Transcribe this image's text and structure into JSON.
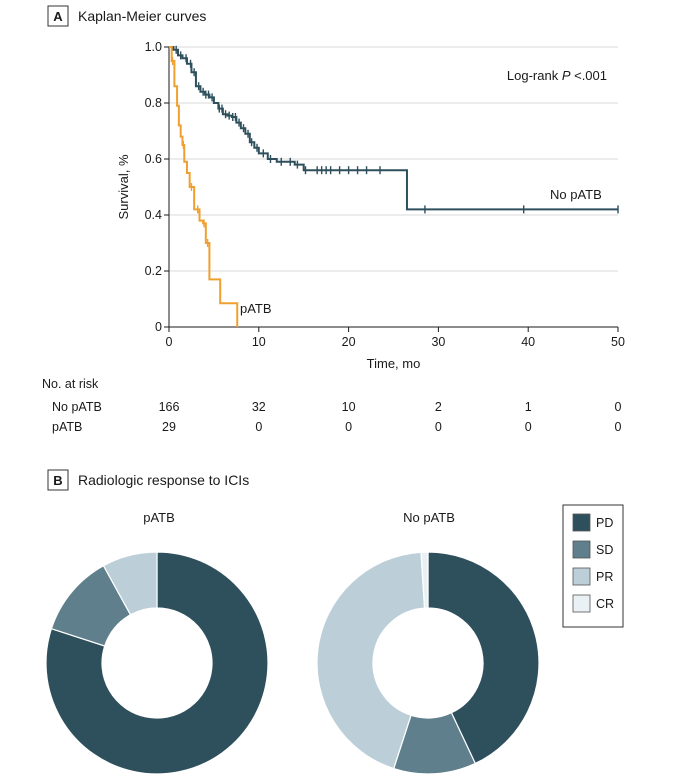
{
  "panel_a": {
    "letter": "A",
    "title": "Kaplan-Meier curves",
    "log_rank_prefix": "Log-rank ",
    "log_rank_p": "P",
    "log_rank_suffix": " <.001",
    "risk_header": "No. at risk",
    "risk_rows": [
      {
        "label": "No pATB",
        "values": [
          "166",
          "32",
          "10",
          "2",
          "1",
          "0"
        ]
      },
      {
        "label": "pATB",
        "values": [
          "29",
          "0",
          "0",
          "0",
          "0",
          "0"
        ]
      }
    ]
  },
  "panel_b": {
    "letter": "B",
    "title": "Radiologic response to ICIs"
  },
  "chart_data": [
    {
      "type": "line",
      "xlabel": "Time, mo",
      "ylabel": "Survival, %",
      "xlim": [
        0,
        50
      ],
      "ylim": [
        0,
        1.0
      ],
      "x_ticks": [
        0,
        10,
        20,
        30,
        40,
        50
      ],
      "x_tick_labels": [
        "0",
        "10",
        "20",
        "30",
        "40",
        "50"
      ],
      "y_ticks": [
        0,
        0.2,
        0.4,
        0.6,
        0.8,
        1.0
      ],
      "y_tick_labels": [
        "0",
        "0.2",
        "0.4",
        "0.6",
        "0.8",
        "1.0"
      ],
      "grid": "horizontal",
      "step": true,
      "series": [
        {
          "name": "No pATB",
          "color": "#2e4f5c",
          "points": [
            [
              0,
              1.0
            ],
            [
              0.5,
              0.99
            ],
            [
              1.0,
              0.97
            ],
            [
              1.5,
              0.96
            ],
            [
              2.0,
              0.94
            ],
            [
              2.5,
              0.91
            ],
            [
              3.0,
              0.86
            ],
            [
              3.5,
              0.84
            ],
            [
              4.0,
              0.83
            ],
            [
              4.5,
              0.82
            ],
            [
              5.0,
              0.8
            ],
            [
              5.5,
              0.78
            ],
            [
              6.0,
              0.76
            ],
            [
              6.5,
              0.755
            ],
            [
              7.0,
              0.75
            ],
            [
              7.5,
              0.73
            ],
            [
              8.0,
              0.71
            ],
            [
              8.5,
              0.69
            ],
            [
              9.0,
              0.66
            ],
            [
              9.5,
              0.64
            ],
            [
              10.0,
              0.62
            ],
            [
              11.0,
              0.6
            ],
            [
              12.0,
              0.59
            ],
            [
              14.0,
              0.58
            ],
            [
              15.0,
              0.56
            ],
            [
              26.5,
              0.56
            ],
            [
              26.5,
              0.42
            ],
            [
              50.0,
              0.42
            ]
          ],
          "censor_x": [
            0.8,
            1.3,
            1.9,
            2.4,
            2.8,
            3.3,
            3.8,
            4.1,
            4.4,
            4.8,
            5.6,
            5.9,
            6.3,
            6.7,
            7.1,
            7.4,
            7.8,
            8.3,
            8.8,
            9.2,
            9.8,
            10.5,
            11.3,
            12.5,
            13.5,
            14.3,
            15.2,
            16.5,
            17.0,
            17.5,
            18.0,
            19.0,
            20.0,
            21.0,
            22.0,
            23.5,
            28.5,
            39.5,
            50.0
          ]
        },
        {
          "name": "pATB",
          "color": "#f0a030",
          "points": [
            [
              0,
              1.0
            ],
            [
              0.3,
              0.95
            ],
            [
              0.6,
              0.86
            ],
            [
              0.9,
              0.79
            ],
            [
              1.1,
              0.72
            ],
            [
              1.3,
              0.68
            ],
            [
              1.5,
              0.65
            ],
            [
              1.7,
              0.59
            ],
            [
              2.0,
              0.55
            ],
            [
              2.3,
              0.5
            ],
            [
              2.8,
              0.42
            ],
            [
              3.4,
              0.38
            ],
            [
              3.8,
              0.37
            ],
            [
              4.1,
              0.3
            ],
            [
              4.5,
              0.17
            ],
            [
              5.7,
              0.17
            ],
            [
              5.7,
              0.085
            ],
            [
              7.6,
              0.085
            ],
            [
              7.6,
              0.0
            ]
          ],
          "censor_x": [
            0.4,
            1.6,
            2.5,
            3.2,
            3.9,
            4.3
          ]
        }
      ]
    },
    {
      "type": "pie",
      "title": "pATB",
      "labels": [
        "PD",
        "SD",
        "PR",
        "CR"
      ],
      "values": [
        80,
        12,
        8,
        0
      ],
      "colors": [
        "#2e4f5c",
        "#5e7f8b",
        "#bccfd8",
        "#eaf1f4"
      ]
    },
    {
      "type": "pie",
      "title": "No pATB",
      "labels": [
        "PD",
        "SD",
        "PR",
        "CR"
      ],
      "values": [
        43,
        12,
        44,
        1
      ],
      "colors": [
        "#2e4f5c",
        "#5e7f8b",
        "#bccfd8",
        "#eaf1f4"
      ],
      "legend": "right"
    }
  ]
}
